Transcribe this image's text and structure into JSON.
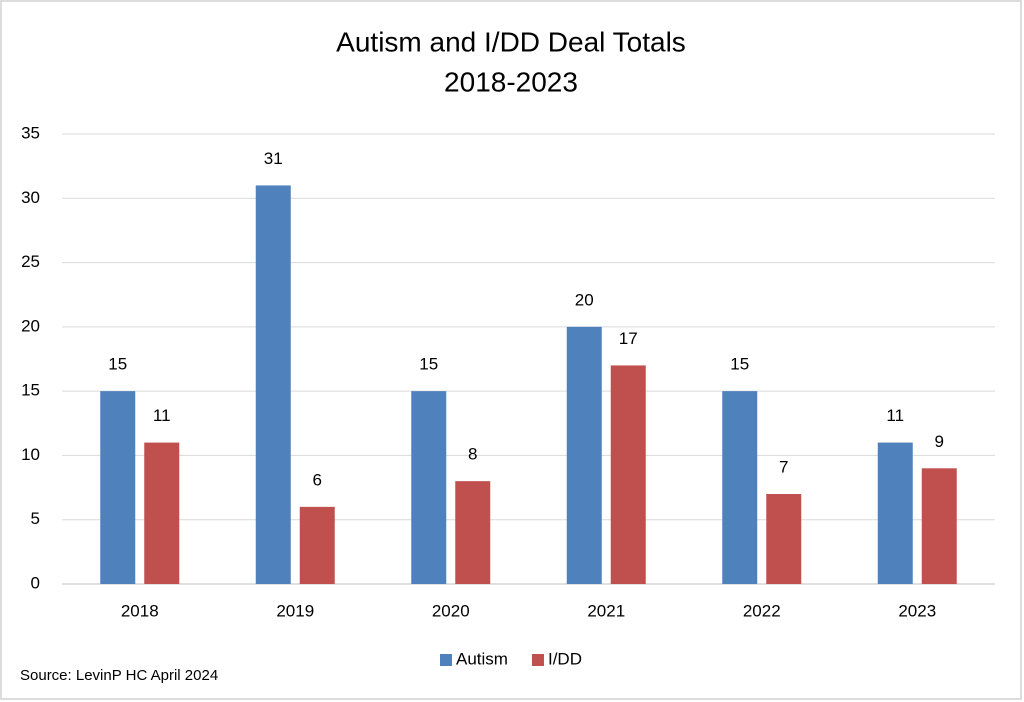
{
  "chart_data": {
    "type": "bar",
    "title": "Autism and I/DD Deal Totals",
    "subtitle": "2018-2023",
    "categories": [
      "2018",
      "2019",
      "2020",
      "2021",
      "2022",
      "2023"
    ],
    "series": [
      {
        "name": "Autism",
        "color": "#4f81bd",
        "values": [
          15,
          31,
          15,
          20,
          15,
          11
        ]
      },
      {
        "name": "I/DD",
        "color": "#c0504d",
        "values": [
          11,
          6,
          8,
          17,
          7,
          9
        ]
      }
    ],
    "ylim": [
      0,
      35
    ],
    "yticks": [
      0,
      5,
      10,
      15,
      20,
      25,
      30,
      35
    ],
    "grid": true,
    "legend": "bottom",
    "source": "Source: LevinP HC April 2024"
  }
}
